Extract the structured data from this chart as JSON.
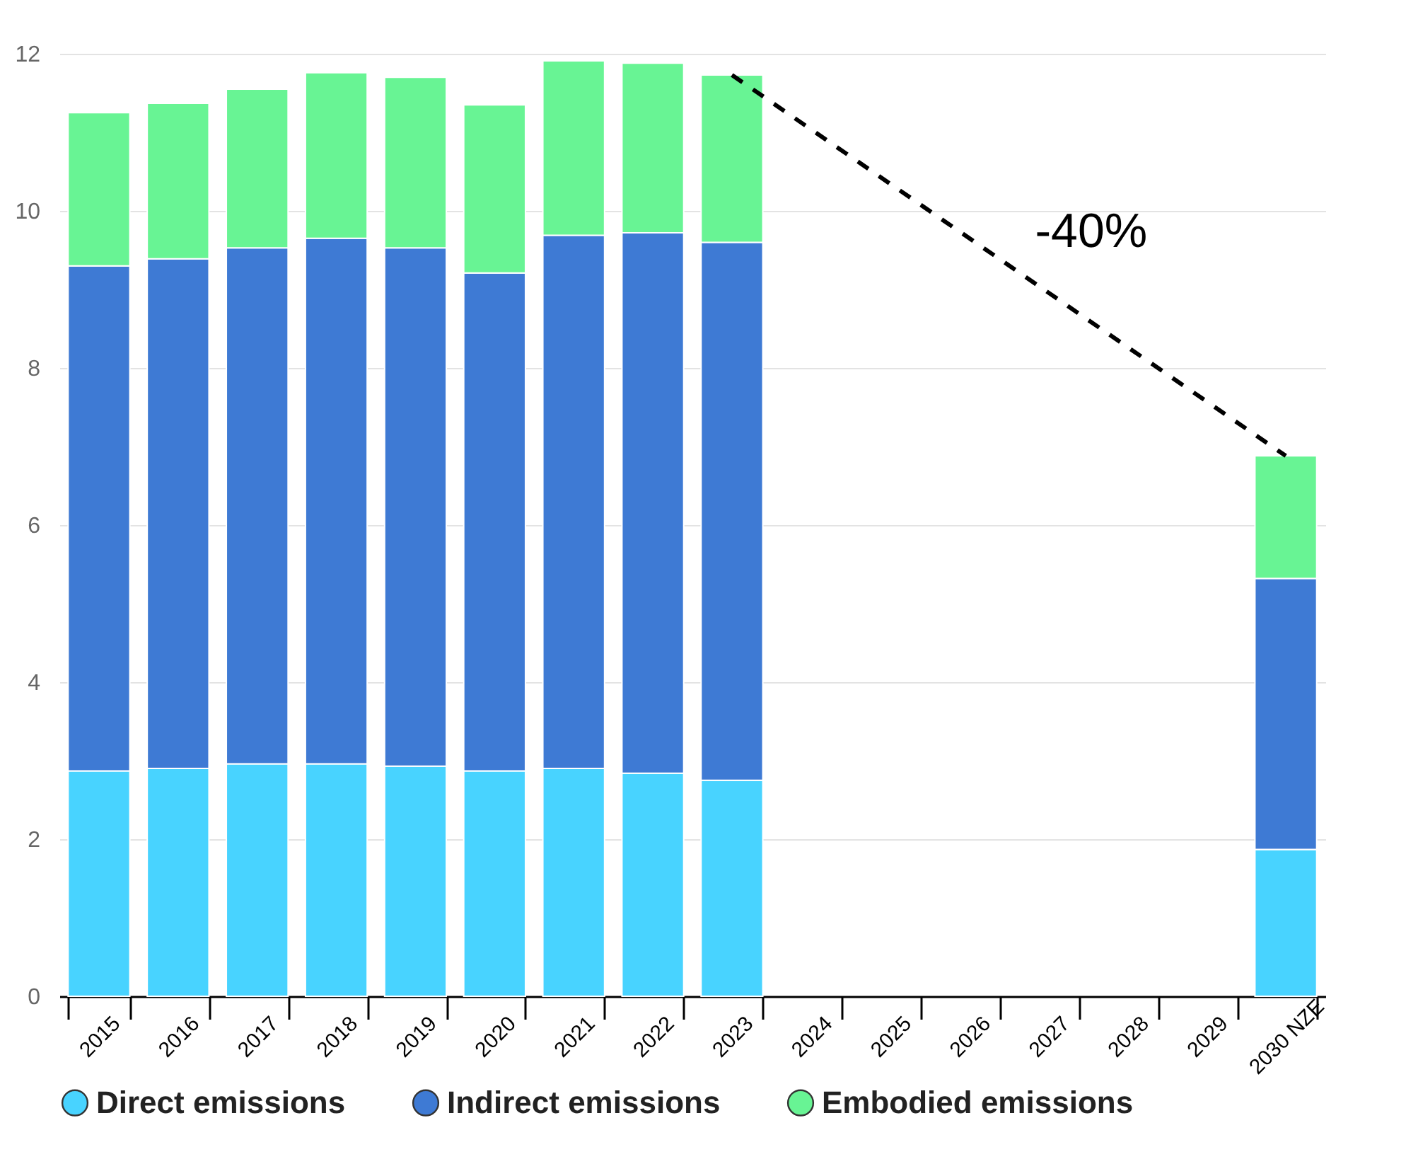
{
  "chart_data": {
    "type": "bar",
    "stacked": true,
    "categories": [
      "2015",
      "2016",
      "2017",
      "2018",
      "2019",
      "2020",
      "2021",
      "2022",
      "2023",
      "2024",
      "2025",
      "2026",
      "2027",
      "2028",
      "2029",
      "2030 NZE"
    ],
    "series": [
      {
        "name": "Direct emissions",
        "color": "#48d3ff",
        "values": [
          2.87,
          2.9,
          2.96,
          2.96,
          2.93,
          2.87,
          2.9,
          2.84,
          2.75,
          null,
          null,
          null,
          null,
          null,
          null,
          1.87
        ]
      },
      {
        "name": "Indirect emissions",
        "color": "#3e7ad4",
        "values": [
          6.43,
          6.49,
          6.57,
          6.69,
          6.6,
          6.34,
          6.79,
          6.88,
          6.85,
          null,
          null,
          null,
          null,
          null,
          null,
          3.45
        ]
      },
      {
        "name": "Embodied emissions",
        "color": "#68f494",
        "values": [
          1.95,
          1.98,
          2.02,
          2.11,
          2.17,
          2.14,
          2.22,
          2.16,
          2.13,
          null,
          null,
          null,
          null,
          null,
          null,
          1.56
        ]
      },
      {
        "type": "line",
        "color": "#000000",
        "line_style": "dashed",
        "marker": "none",
        "values": [
          null,
          null,
          null,
          null,
          null,
          null,
          null,
          null,
          11.73,
          null,
          null,
          null,
          null,
          null,
          null,
          6.88
        ]
      }
    ],
    "ylim": [
      0,
      12
    ],
    "yticks": [
      0,
      2,
      4,
      6,
      8,
      10,
      12
    ],
    "grid": "y",
    "legend": "bottom",
    "annotations": [
      "-40%"
    ]
  }
}
